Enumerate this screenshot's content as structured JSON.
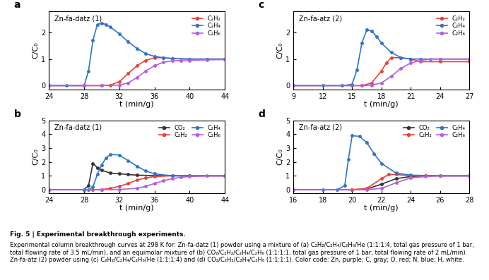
{
  "chart_data": [
    {
      "type": "line",
      "panel": "a",
      "annotation": "Zn-fa-datz (1)",
      "x_label": "t (min/g)",
      "y_label": "C/C₀",
      "xlim": [
        24,
        44
      ],
      "xticks": [
        24,
        28,
        32,
        36,
        40,
        44
      ],
      "ylim": [
        -0.15,
        2.8
      ],
      "yticks": [
        0,
        1,
        2
      ],
      "grid": false,
      "legend": "upper right",
      "series": [
        {
          "name": "C₂H₂",
          "color": "#e8413c",
          "marker": "o",
          "x": [
            24,
            28,
            30,
            31,
            32,
            33,
            34,
            35,
            36,
            37,
            38,
            40,
            42,
            44
          ],
          "values": [
            0,
            0,
            0,
            0.02,
            0.15,
            0.45,
            0.75,
            0.95,
            1.05,
            1.05,
            1.02,
            1.0,
            1.0,
            1.0
          ]
        },
        {
          "name": "C₂H₄",
          "color": "#2e75c9",
          "marker": "o",
          "x": [
            24,
            26,
            28,
            28.5,
            29,
            29.5,
            30,
            30.5,
            31,
            32,
            33,
            34,
            35,
            36,
            37,
            38,
            40,
            42,
            44
          ],
          "values": [
            0,
            0,
            0,
            0.55,
            1.7,
            2.3,
            2.35,
            2.3,
            2.2,
            1.95,
            1.65,
            1.4,
            1.2,
            1.1,
            1.05,
            1.02,
            1.0,
            1.0,
            1.0
          ]
        },
        {
          "name": "C₂H₆",
          "color": "#b45ee0",
          "marker": "o",
          "x": [
            24,
            28,
            30,
            32,
            33,
            34,
            35,
            36,
            37,
            38,
            39,
            40,
            42,
            44
          ],
          "values": [
            0,
            0,
            0,
            0.02,
            0.1,
            0.3,
            0.55,
            0.75,
            0.88,
            0.93,
            0.95,
            0.95,
            0.97,
            0.98
          ]
        }
      ]
    },
    {
      "type": "line",
      "panel": "b",
      "annotation": "Zn-fa-datz (1)",
      "x_label": "t (min/g)",
      "y_label": "C/C₀",
      "xlim": [
        24,
        44
      ],
      "xticks": [
        24,
        28,
        32,
        36,
        40,
        44
      ],
      "ylim": [
        -0.25,
        5
      ],
      "yticks": [
        0,
        1,
        2,
        3,
        4,
        5
      ],
      "grid": false,
      "legend": "upper right",
      "series": [
        {
          "name": "CO₂",
          "color": "#333333",
          "marker": "o",
          "x": [
            24,
            28,
            28.5,
            29,
            29.5,
            30,
            31,
            32,
            33,
            34,
            36,
            40,
            44
          ],
          "values": [
            0,
            0,
            0.3,
            1.9,
            1.6,
            1.4,
            1.2,
            1.15,
            1.1,
            1.05,
            1.02,
            1.0,
            1.0
          ]
        },
        {
          "name": "C₂H₂",
          "color": "#e8413c",
          "marker": "o",
          "x": [
            24,
            29,
            30,
            31,
            32,
            33,
            34,
            35,
            36,
            38,
            40,
            44
          ],
          "values": [
            0,
            0,
            0.02,
            0.1,
            0.25,
            0.45,
            0.7,
            0.85,
            0.95,
            1.0,
            1.0,
            1.0
          ]
        },
        {
          "name": "C₂H₄",
          "color": "#2e75c9",
          "marker": "o",
          "x": [
            24,
            28,
            28.5,
            29,
            29.5,
            30,
            30.5,
            31,
            32,
            33,
            34,
            35,
            36,
            38,
            40,
            44
          ],
          "values": [
            0,
            0,
            0,
            0.2,
            1.1,
            1.8,
            2.3,
            2.55,
            2.5,
            2.1,
            1.7,
            1.35,
            1.15,
            1.0,
            1.0,
            1.0
          ]
        },
        {
          "name": "C₂H₆",
          "color": "#b45ee0",
          "marker": "o",
          "x": [
            24,
            30,
            32,
            34,
            35,
            36,
            37,
            38,
            39,
            40,
            42,
            44
          ],
          "values": [
            0,
            0,
            0.02,
            0.1,
            0.25,
            0.45,
            0.65,
            0.8,
            0.9,
            0.95,
            1.0,
            1.0
          ]
        }
      ]
    },
    {
      "type": "line",
      "panel": "c",
      "annotation": "Zn-fa-atz (2)",
      "x_label": "t (min/g)",
      "y_label": "C/C₀",
      "xlim": [
        9,
        27
      ],
      "xticks": [
        9,
        12,
        15,
        18,
        21,
        24,
        27
      ],
      "ylim": [
        -0.15,
        2.8
      ],
      "yticks": [
        0,
        1,
        2
      ],
      "grid": false,
      "legend": "upper right",
      "series": [
        {
          "name": "C₂H₂",
          "color": "#e8413c",
          "marker": "o",
          "x": [
            9,
            15,
            16,
            17,
            18,
            18.5,
            19,
            20,
            21,
            22,
            24,
            27
          ],
          "values": [
            0,
            0,
            0,
            0.1,
            0.55,
            0.85,
            1.05,
            1.05,
            1.0,
            0.9,
            0.9,
            0.9
          ]
        },
        {
          "name": "C₂H₄",
          "color": "#2e75c9",
          "marker": "o",
          "x": [
            9,
            12,
            14,
            15,
            15.5,
            16,
            16.5,
            17,
            17.5,
            18,
            19,
            20,
            21,
            22,
            24,
            27
          ],
          "values": [
            0,
            0,
            0,
            0.05,
            0.6,
            1.6,
            2.1,
            2.05,
            1.85,
            1.6,
            1.25,
            1.05,
            1.0,
            1.0,
            1.0,
            1.0
          ]
        },
        {
          "name": "C₂H₆",
          "color": "#b45ee0",
          "marker": "o",
          "x": [
            9,
            16,
            17,
            18,
            19,
            20,
            21,
            22,
            23,
            24,
            27
          ],
          "values": [
            0,
            0,
            0.02,
            0.1,
            0.35,
            0.65,
            0.85,
            0.95,
            1.0,
            1.0,
            1.0
          ]
        }
      ]
    },
    {
      "type": "line",
      "panel": "d",
      "annotation": "Zn-fa-atz (2)",
      "x_label": "t (min/g)",
      "y_label": "C/C₀",
      "xlim": [
        16,
        28
      ],
      "xticks": [
        16,
        18,
        20,
        22,
        24,
        26,
        28
      ],
      "ylim": [
        -0.25,
        5
      ],
      "yticks": [
        0,
        1,
        2,
        3,
        4,
        5
      ],
      "grid": false,
      "legend": "upper right",
      "series": [
        {
          "name": "CO₂",
          "color": "#333333",
          "marker": "o",
          "x": [
            16,
            20,
            21,
            22,
            23,
            24,
            25,
            26,
            28
          ],
          "values": [
            0,
            0,
            0.05,
            0.4,
            0.8,
            0.95,
            1.0,
            1.0,
            1.0
          ]
        },
        {
          "name": "C₂H₂",
          "color": "#e8413c",
          "marker": "o",
          "x": [
            16,
            20,
            21,
            22,
            22.5,
            23,
            24,
            25,
            26,
            28
          ],
          "values": [
            0,
            0,
            0.1,
            0.8,
            1.1,
            1.1,
            1.0,
            1.0,
            1.0,
            1.0
          ]
        },
        {
          "name": "C₂H₄",
          "color": "#2e75c9",
          "marker": "o",
          "x": [
            16,
            18,
            19,
            19.5,
            19.75,
            20,
            20.5,
            21,
            21.5,
            22,
            23,
            24,
            26,
            28
          ],
          "values": [
            0,
            0,
            0,
            0.3,
            2.2,
            3.9,
            3.85,
            3.4,
            2.6,
            1.9,
            1.2,
            1.05,
            1.0,
            1.0
          ]
        },
        {
          "name": "C₂H₆",
          "color": "#b45ee0",
          "marker": "o",
          "x": [
            16,
            21,
            22,
            23,
            24,
            25,
            26,
            28
          ],
          "values": [
            0,
            0,
            0.1,
            0.5,
            0.85,
            0.95,
            1.0,
            1.0
          ]
        }
      ]
    }
  ],
  "caption_title": "Fig. 5 | Experimental breakthrough experiments.",
  "caption": "Experimental column breakthrough curves at 298 K for: Zn-fa-datz (1) powder using a mixture of (a) C₂H₂/C₂H₄/C₂H₆/He (1:1:1:4, total gas pressure of 1 bar, total flowing rate of 3.5 mL/min), and an equimolar mixture of (b) CO₂/C₂H₂/C₂H₄/C₂H₆ (1:1:1:1, total gas pressure of 1 bar, total flowing rate of 2 mL/min). Zn-fa-atz (2) powder using (c) C₂H₂/C₂H₄/C₂H₆/He (1:1:1:4) and (d) CO₂/C₂H₂/C₂H₄/C₂H₆ (1:1:1:1). Color code: Zn, purple; C, gray; O, red; N, blue; H, white."
}
